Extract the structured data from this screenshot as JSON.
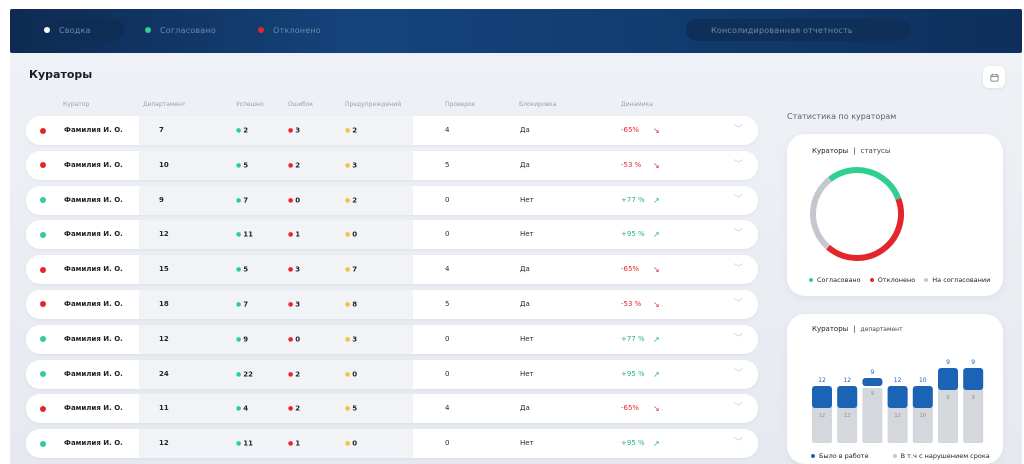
{
  "topbar": {
    "tabs": [
      {
        "label": "Сводка",
        "dot_color": "#ffffff"
      },
      {
        "label": "Согласовано",
        "dot_color": "#2ecf8f"
      },
      {
        "label": "Отклонено",
        "dot_color": "#e3262c"
      }
    ],
    "consolidated_label": "Консолидированная отчетность"
  },
  "page": {
    "title": "Кураторы",
    "calendar_icon": "calendar-icon"
  },
  "table": {
    "headers": [
      "Куратор",
      "Департамент",
      "Успешно",
      "Ошибок",
      "Предупреждений",
      "Проверок",
      "Блокировка",
      "Динамика"
    ],
    "rows": [
      {
        "status": "red",
        "name": "Фамилия И. О.",
        "dep": "7",
        "ok": "2",
        "err": "3",
        "warn": "2",
        "checks": "4",
        "block": "Да",
        "dyn": "-65%",
        "trend": "down"
      },
      {
        "status": "red",
        "name": "Фамилия И. О.",
        "dep": "10",
        "ok": "5",
        "err": "2",
        "warn": "3",
        "checks": "5",
        "block": "Да",
        "dyn": "-53 %",
        "trend": "down"
      },
      {
        "status": "green",
        "name": "Фамилия И. О.",
        "dep": "9",
        "ok": "7",
        "err": "0",
        "warn": "2",
        "checks": "0",
        "block": "Нет",
        "dyn": "+77 %",
        "trend": "up"
      },
      {
        "status": "green",
        "name": "Фамилия И. О.",
        "dep": "12",
        "ok": "11",
        "err": "1",
        "warn": "0",
        "checks": "0",
        "block": "Нет",
        "dyn": "+95 %",
        "trend": "up"
      },
      {
        "status": "red",
        "name": "Фамилия И. О.",
        "dep": "15",
        "ok": "5",
        "err": "3",
        "warn": "7",
        "checks": "4",
        "block": "Да",
        "dyn": "-65%",
        "trend": "down"
      },
      {
        "status": "red",
        "name": "Фамилия И. О.",
        "dep": "18",
        "ok": "7",
        "err": "3",
        "warn": "8",
        "checks": "5",
        "block": "Да",
        "dyn": "-53 %",
        "trend": "down"
      },
      {
        "status": "green",
        "name": "Фамилия И. О.",
        "dep": "12",
        "ok": "9",
        "err": "0",
        "warn": "3",
        "checks": "0",
        "block": "Нет",
        "dyn": "+77 %",
        "trend": "up"
      },
      {
        "status": "green",
        "name": "Фамилия И. О.",
        "dep": "24",
        "ok": "22",
        "err": "2",
        "warn": "0",
        "checks": "0",
        "block": "Нет",
        "dyn": "+95 %",
        "trend": "up"
      },
      {
        "status": "red",
        "name": "Фамилия И. О.",
        "dep": "11",
        "ok": "4",
        "err": "2",
        "warn": "5",
        "checks": "4",
        "block": "Да",
        "dyn": "-65%",
        "trend": "down"
      },
      {
        "status": "green",
        "name": "Фамилия И. О.",
        "dep": "12",
        "ok": "11",
        "err": "1",
        "warn": "0",
        "checks": "0",
        "block": "Нет",
        "dyn": "+95 %",
        "trend": "up"
      }
    ]
  },
  "stats": {
    "title": "Статистика по кураторам",
    "card1": {
      "head": "Кураторы",
      "sub": "статусы",
      "legend": [
        {
          "label": "Согласовано",
          "color": "#2ecf8f"
        },
        {
          "label": "Отклонено",
          "color": "#e3262c"
        },
        {
          "label": "На согласовании",
          "color": "#c4c8ce"
        }
      ]
    },
    "card2": {
      "head": "Кураторы",
      "sub": "департамент",
      "legend": [
        {
          "label": "Было в работе",
          "color": "#1b63b5"
        },
        {
          "label": "В т.ч с нарушением срока",
          "color": "#c4c8ce"
        }
      ]
    }
  },
  "chart_data": [
    {
      "type": "pie",
      "title": "",
      "labels": [
        "Согласовано",
        "Отклонено",
        "На согласовании"
      ],
      "values": [
        30,
        42,
        28
      ],
      "colors": [
        "#2ecf8f",
        "#e3262c",
        "#c4c8ce"
      ]
    },
    {
      "type": "bar",
      "categories": [
        "",
        "",
        "",
        "",
        "",
        "",
        ""
      ],
      "series": [
        {
          "name": "Было в работе",
          "values": [
            12,
            12,
            9,
            12,
            10,
            9,
            9
          ],
          "color": "#1b63b5"
        },
        {
          "name": "В т.ч с нарушением срока",
          "values": [
            12,
            12,
            9,
            12,
            10,
            9,
            9
          ],
          "color": "#d4d7dc"
        }
      ]
    }
  ]
}
